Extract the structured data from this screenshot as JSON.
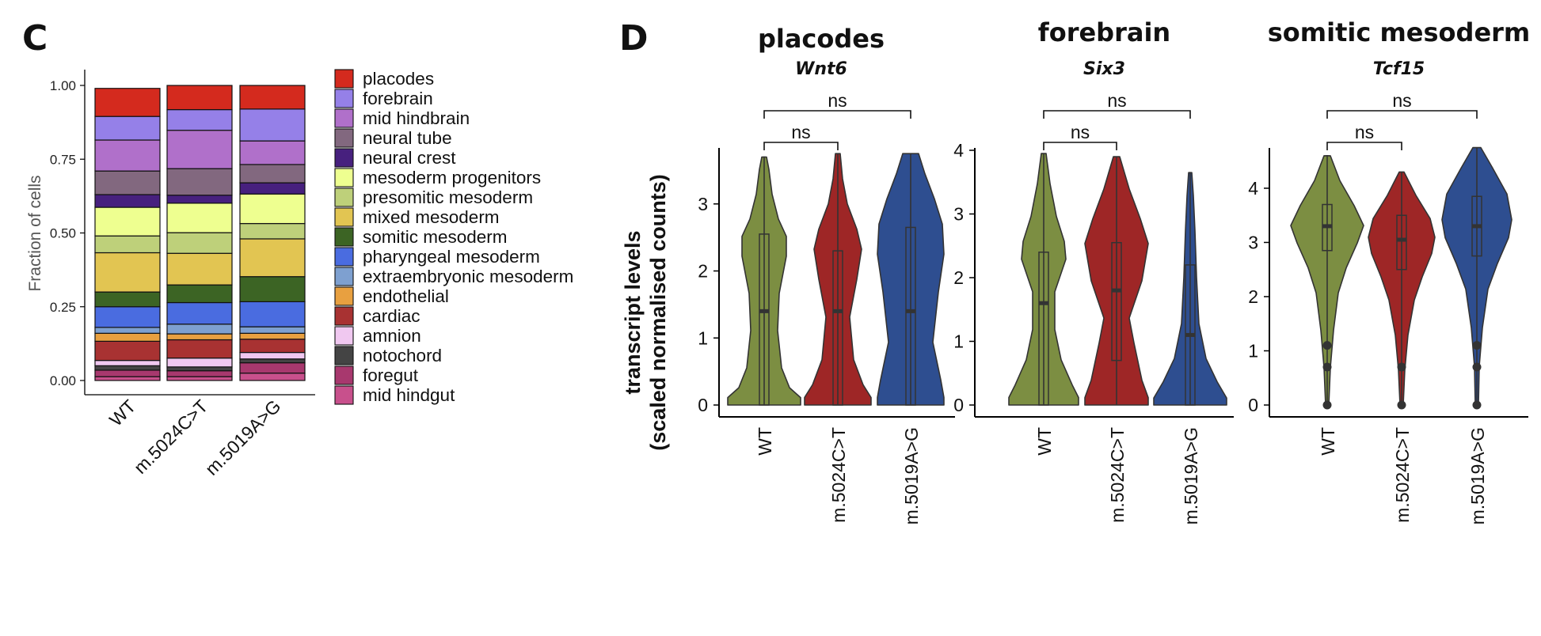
{
  "panels": {
    "c_label": "C",
    "d_label": "D"
  },
  "chart_data": [
    {
      "type": "stacked_bar",
      "panel": "C",
      "ylabel": "Fraction of cells",
      "ylim": [
        0,
        1
      ],
      "yticks": [
        "0.00",
        "0.25",
        "0.50",
        "0.75",
        "1.00"
      ],
      "categories": [
        "WT",
        "m.5024C>T",
        "m.5019A>G"
      ],
      "legend_position": "right",
      "series": [
        {
          "name": "mid hindgut",
          "color": "#C8508C",
          "values": [
            0.013,
            0.013,
            0.025
          ]
        },
        {
          "name": "foregut",
          "color": "#A8386E",
          "values": [
            0.022,
            0.02,
            0.035
          ]
        },
        {
          "name": "notochord",
          "color": "#444444",
          "values": [
            0.015,
            0.013,
            0.013
          ]
        },
        {
          "name": "amnion",
          "color": "#F0C8F0",
          "values": [
            0.018,
            0.03,
            0.022
          ]
        },
        {
          "name": "cardiac",
          "color": "#A83232",
          "values": [
            0.065,
            0.062,
            0.045
          ]
        },
        {
          "name": "endothelial",
          "color": "#E8A040",
          "values": [
            0.027,
            0.02,
            0.02
          ]
        },
        {
          "name": "extraembryonic mesoderm",
          "color": "#7EA0D0",
          "values": [
            0.02,
            0.033,
            0.022
          ]
        },
        {
          "name": "pharyngeal mesoderm",
          "color": "#4A6CE0",
          "values": [
            0.07,
            0.073,
            0.085
          ]
        },
        {
          "name": "somitic mesoderm",
          "color": "#3C6424",
          "values": [
            0.05,
            0.06,
            0.085
          ]
        },
        {
          "name": "mixed mesoderm",
          "color": "#E2C552",
          "values": [
            0.133,
            0.107,
            0.128
          ]
        },
        {
          "name": "presomitic mesoderm",
          "color": "#BED07A",
          "values": [
            0.057,
            0.07,
            0.052
          ]
        },
        {
          "name": "mesoderm progenitors",
          "color": "#EEFF90",
          "values": [
            0.097,
            0.1,
            0.1
          ]
        },
        {
          "name": "neural crest",
          "color": "#47207E",
          "values": [
            0.043,
            0.027,
            0.038
          ]
        },
        {
          "name": "neural tube",
          "color": "#82687F",
          "values": [
            0.08,
            0.09,
            0.062
          ]
        },
        {
          "name": "mid hindbrain",
          "color": "#B070CA",
          "values": [
            0.105,
            0.13,
            0.08
          ]
        },
        {
          "name": "forebrain",
          "color": "#9580E8",
          "values": [
            0.08,
            0.07,
            0.108
          ]
        },
        {
          "name": "placodes",
          "color": "#D42A1E",
          "values": [
            0.095,
            0.082,
            0.08
          ]
        }
      ]
    },
    {
      "type": "violin",
      "panel": "D",
      "ylabel_line1": "transcript levels",
      "ylabel_line2": "(scaled normalised counts)",
      "group_colors": [
        "#7C8E42",
        "#9E2626",
        "#2E4E90"
      ],
      "facets": [
        {
          "title": "placodes",
          "gene": "Wnt6",
          "ylim": [
            0,
            3.8
          ],
          "yticks": [
            0,
            1,
            2,
            3
          ],
          "categories": [
            "WT",
            "m.5024C>T",
            "m.5019A>G"
          ],
          "medians": [
            1.4,
            1.4,
            1.4
          ],
          "q1": [
            0,
            0,
            0
          ],
          "q3": [
            2.55,
            2.3,
            2.65
          ],
          "max": [
            3.7,
            3.75,
            3.75
          ],
          "comparisons": [
            {
              "groups": [
                "WT",
                "m.5024C>T"
              ],
              "label": "ns"
            },
            {
              "groups": [
                "WT",
                "m.5019A>G"
              ],
              "label": "ns"
            }
          ]
        },
        {
          "title": "forebrain",
          "gene": "Six3",
          "ylim": [
            0,
            4.0
          ],
          "yticks": [
            0,
            1,
            2,
            3,
            4
          ],
          "categories": [
            "WT",
            "m.5024C>T",
            "m.5019A>G"
          ],
          "medians": [
            1.6,
            1.8,
            1.1
          ],
          "q1": [
            0,
            0.7,
            0
          ],
          "q3": [
            2.4,
            2.55,
            2.2
          ],
          "max": [
            3.95,
            3.9,
            3.65
          ],
          "comparisons": [
            {
              "groups": [
                "WT",
                "m.5024C>T"
              ],
              "label": "ns"
            },
            {
              "groups": [
                "WT",
                "m.5019A>G"
              ],
              "label": "ns"
            }
          ]
        },
        {
          "title": "somitic mesoderm",
          "gene": "Tcf15",
          "ylim": [
            0,
            4.7
          ],
          "yticks": [
            0,
            1,
            2,
            3,
            4
          ],
          "categories": [
            "WT",
            "m.5024C>T",
            "m.5019A>G"
          ],
          "medians": [
            3.3,
            3.05,
            3.3
          ],
          "q1": [
            2.85,
            2.5,
            2.75
          ],
          "q3": [
            3.7,
            3.5,
            3.85
          ],
          "max": [
            4.6,
            4.3,
            4.75
          ],
          "outliers": [
            [
              0,
              0.7,
              1.1
            ],
            [
              0,
              0.7
            ],
            [
              0,
              0.7,
              1.1
            ]
          ],
          "comparisons": [
            {
              "groups": [
                "WT",
                "m.5024C>T"
              ],
              "label": "ns"
            },
            {
              "groups": [
                "WT",
                "m.5019A>G"
              ],
              "label": "ns"
            }
          ]
        }
      ]
    }
  ]
}
